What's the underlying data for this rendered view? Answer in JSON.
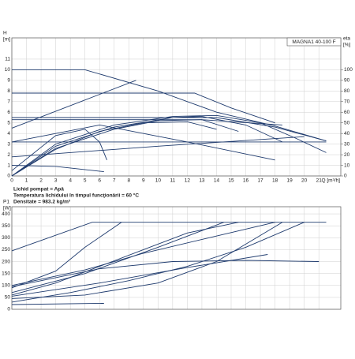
{
  "chart_data": [
    {
      "type": "line",
      "title": "MAGNA1 40-100 F",
      "ylabel": [
        "H",
        "[m]"
      ],
      "y2label": [
        "eta",
        "[%]"
      ],
      "xlabel": "Q [m³/h]",
      "annotations": [
        "Lichid pompat = Apă",
        "Temperatura lichidului în timpul funcţionării = 60 °C",
        "Densitate = 983.2 kg/m³"
      ],
      "xlim": [
        0,
        22.5
      ],
      "xticks": [
        0,
        1,
        2,
        3,
        4,
        5,
        6,
        7,
        8,
        9,
        10,
        11,
        12,
        13,
        14,
        15,
        16,
        17,
        18,
        19,
        20,
        21
      ],
      "ylim": [
        0,
        13
      ],
      "yticks": [
        0,
        1,
        2,
        3,
        4,
        5,
        6,
        7,
        8,
        9,
        10,
        11
      ],
      "y2lim": [
        0,
        130
      ],
      "y2ticks": [
        0,
        10,
        20,
        30,
        40,
        50,
        60,
        70,
        80,
        90,
        100
      ],
      "grid": true,
      "xtick_labels": true,
      "series": [
        {
          "color": "#1f3b6e",
          "x": [
            0,
            5,
            10,
            14,
            18,
            21.5
          ],
          "values": [
            10,
            10,
            8,
            6,
            4.7,
            3.3
          ]
        },
        {
          "color": "#1f3b6e",
          "x": [
            0,
            12.5,
            15,
            18
          ],
          "values": [
            7.8,
            7.8,
            6.4,
            5
          ]
        },
        {
          "color": "#1f3b6e",
          "x": [
            0,
            8.5
          ],
          "values": [
            4.5,
            9
          ]
        },
        {
          "color": "#1f3b6e",
          "x": [
            0,
            14,
            18,
            21.5
          ],
          "values": [
            5.5,
            5.5,
            4.6,
            3.3
          ]
        },
        {
          "color": "#1f3b6e",
          "x": [
            0,
            13,
            18.5
          ],
          "values": [
            5.3,
            5.3,
            4.8
          ]
        },
        {
          "color": "#1f3b6e",
          "x": [
            0,
            6,
            12,
            18
          ],
          "values": [
            3.2,
            4.8,
            3.2,
            1.5
          ]
        },
        {
          "color": "#1f3b6e",
          "x": [
            0,
            10,
            21.5
          ],
          "values": [
            3.2,
            3.2,
            3.2
          ]
        },
        {
          "color": "#1f3b6e",
          "x": [
            0,
            10,
            20
          ],
          "values": [
            1.8,
            2.8,
            3.7
          ]
        },
        {
          "color": "#1f3b6e",
          "x": [
            0,
            3,
            6.3
          ],
          "values": [
            1,
            0.9,
            0.4
          ]
        },
        {
          "color": "#1f3b6e",
          "x": [
            0,
            3,
            5,
            6,
            6.5
          ],
          "values": [
            0.5,
            3.8,
            4.4,
            3.2,
            1.5
          ]
        },
        {
          "color": "#1f3b6e",
          "axis": "y2",
          "x": [
            0,
            3,
            7,
            11,
            14,
            17,
            19.5,
            21.5
          ],
          "values": [
            0,
            30,
            48,
            56,
            57,
            50,
            35,
            22
          ]
        },
        {
          "color": "#1f3b6e",
          "axis": "y2",
          "x": [
            0,
            3,
            7,
            11,
            13,
            16,
            18.5
          ],
          "values": [
            0,
            28,
            46,
            55,
            56,
            48,
            32
          ]
        },
        {
          "color": "#1f3b6e",
          "axis": "y2",
          "x": [
            0,
            3,
            7,
            10,
            13,
            15.5
          ],
          "values": [
            0,
            26,
            44,
            52,
            53,
            42
          ]
        },
        {
          "color": "#1f3b6e",
          "axis": "y2",
          "x": [
            0,
            3,
            6,
            9,
            12,
            14
          ],
          "values": [
            0,
            25,
            42,
            50,
            51,
            44
          ]
        }
      ]
    },
    {
      "type": "line",
      "ylabel": [
        "P1",
        "[W]"
      ],
      "xlim": [
        0,
        22.5
      ],
      "xticks": [
        0,
        1,
        2,
        3,
        4,
        5,
        6,
        7,
        8,
        9,
        10,
        11,
        12,
        13,
        14,
        15,
        16,
        17,
        18,
        19,
        20,
        21
      ],
      "ylim": [
        0,
        430
      ],
      "yticks": [
        0,
        50,
        100,
        150,
        200,
        250,
        300,
        350,
        400
      ],
      "grid": true,
      "xtick_labels": false,
      "series": [
        {
          "color": "#1f3b6e",
          "x": [
            0,
            5.5,
            21.5
          ],
          "values": [
            245,
            365,
            365
          ]
        },
        {
          "color": "#1f3b6e",
          "x": [
            0,
            5,
            9,
            13.5,
            18
          ],
          "values": [
            100,
            165,
            235,
            300,
            365
          ]
        },
        {
          "color": "#1f3b6e",
          "x": [
            0,
            5,
            10,
            14.5
          ],
          "values": [
            70,
            150,
            260,
            365
          ]
        },
        {
          "color": "#1f3b6e",
          "x": [
            0,
            6,
            12,
            17.5
          ],
          "values": [
            55,
            110,
            175,
            230
          ]
        },
        {
          "color": "#1f3b6e",
          "x": [
            0,
            4,
            8,
            12,
            16,
            20
          ],
          "values": [
            30,
            70,
            120,
            180,
            260,
            365
          ]
        },
        {
          "color": "#1f3b6e",
          "x": [
            0,
            3,
            5,
            7.5
          ],
          "values": [
            90,
            160,
            260,
            365
          ]
        },
        {
          "color": "#1f3b6e",
          "x": [
            0,
            3,
            6,
            9,
            12,
            15.5
          ],
          "values": [
            60,
            110,
            180,
            250,
            320,
            365
          ]
        },
        {
          "color": "#1f3b6e",
          "x": [
            0,
            6,
            11,
            16,
            21
          ],
          "values": [
            95,
            170,
            200,
            205,
            200
          ]
        },
        {
          "color": "#1f3b6e",
          "x": [
            0,
            5,
            10,
            14,
            18.5
          ],
          "values": [
            45,
            60,
            110,
            200,
            365
          ]
        },
        {
          "color": "#1f3b6e",
          "x": [
            0,
            6.3
          ],
          "values": [
            20,
            25
          ]
        }
      ]
    }
  ]
}
